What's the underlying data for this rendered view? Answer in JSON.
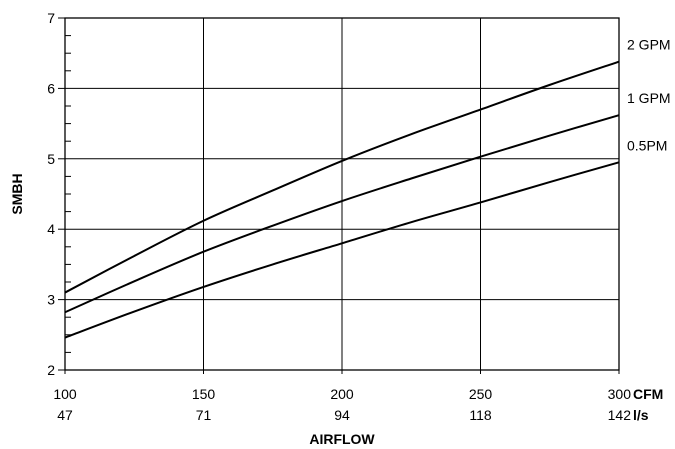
{
  "chart_data": {
    "type": "line",
    "xlabel": "AIRFLOW",
    "ylabel": "SMBH",
    "xlim": [
      100,
      300
    ],
    "ylim": [
      2,
      7
    ],
    "grid": true,
    "x_ticks": [
      100,
      150,
      200,
      250,
      300
    ],
    "x_ticks_secondary": [
      "47",
      "71",
      "94",
      "118",
      "142"
    ],
    "x_unit_primary": "CFM",
    "x_unit_secondary": "l/s",
    "y_ticks": [
      2,
      3,
      4,
      5,
      6,
      7
    ],
    "series": [
      {
        "name": "2 GPM",
        "x": [
          100,
          125,
          150,
          175,
          200,
          225,
          250,
          275,
          300
        ],
        "y": [
          3.1,
          3.62,
          4.12,
          4.55,
          4.97,
          5.35,
          5.7,
          6.05,
          6.38
        ]
      },
      {
        "name": "1 GPM",
        "x": [
          100,
          125,
          150,
          175,
          200,
          225,
          250,
          275,
          300
        ],
        "y": [
          2.82,
          3.26,
          3.68,
          4.05,
          4.4,
          4.72,
          5.03,
          5.33,
          5.62
        ]
      },
      {
        "name": "0.5PM",
        "x": [
          100,
          125,
          150,
          175,
          200,
          225,
          250,
          275,
          300
        ],
        "y": [
          2.46,
          2.83,
          3.18,
          3.5,
          3.8,
          4.1,
          4.38,
          4.67,
          4.95
        ]
      }
    ]
  }
}
